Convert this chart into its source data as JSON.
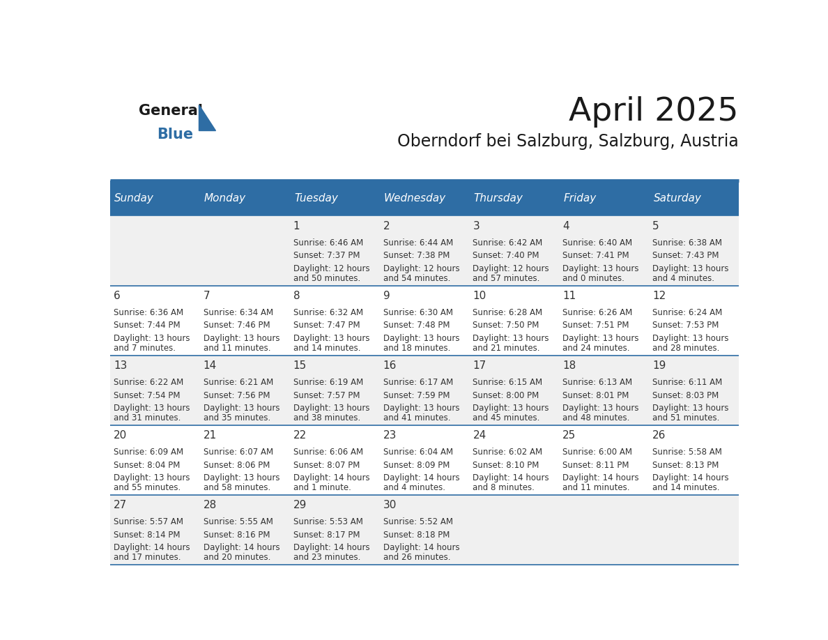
{
  "title": "April 2025",
  "subtitle": "Oberndorf bei Salzburg, Salzburg, Austria",
  "days_of_week": [
    "Sunday",
    "Monday",
    "Tuesday",
    "Wednesday",
    "Thursday",
    "Friday",
    "Saturday"
  ],
  "header_bg": "#2E6DA4",
  "header_text": "#FFFFFF",
  "cell_bg_light": "#F0F0F0",
  "cell_bg_white": "#FFFFFF",
  "cell_text": "#333333",
  "border_color": "#2E6DA4",
  "title_color": "#1a1a1a",
  "subtitle_color": "#1a1a1a",
  "logo_general_color": "#1a1a1a",
  "logo_blue_color": "#2E6DA4",
  "calendar_data": [
    {
      "week": 0,
      "dow": 2,
      "day": 1,
      "sunrise": "6:46 AM",
      "sunset": "7:37 PM",
      "daylight_hours": 12,
      "daylight_minutes": 50
    },
    {
      "week": 0,
      "dow": 3,
      "day": 2,
      "sunrise": "6:44 AM",
      "sunset": "7:38 PM",
      "daylight_hours": 12,
      "daylight_minutes": 54
    },
    {
      "week": 0,
      "dow": 4,
      "day": 3,
      "sunrise": "6:42 AM",
      "sunset": "7:40 PM",
      "daylight_hours": 12,
      "daylight_minutes": 57
    },
    {
      "week": 0,
      "dow": 5,
      "day": 4,
      "sunrise": "6:40 AM",
      "sunset": "7:41 PM",
      "daylight_hours": 13,
      "daylight_minutes": 0
    },
    {
      "week": 0,
      "dow": 6,
      "day": 5,
      "sunrise": "6:38 AM",
      "sunset": "7:43 PM",
      "daylight_hours": 13,
      "daylight_minutes": 4
    },
    {
      "week": 1,
      "dow": 0,
      "day": 6,
      "sunrise": "6:36 AM",
      "sunset": "7:44 PM",
      "daylight_hours": 13,
      "daylight_minutes": 7
    },
    {
      "week": 1,
      "dow": 1,
      "day": 7,
      "sunrise": "6:34 AM",
      "sunset": "7:46 PM",
      "daylight_hours": 13,
      "daylight_minutes": 11
    },
    {
      "week": 1,
      "dow": 2,
      "day": 8,
      "sunrise": "6:32 AM",
      "sunset": "7:47 PM",
      "daylight_hours": 13,
      "daylight_minutes": 14
    },
    {
      "week": 1,
      "dow": 3,
      "day": 9,
      "sunrise": "6:30 AM",
      "sunset": "7:48 PM",
      "daylight_hours": 13,
      "daylight_minutes": 18
    },
    {
      "week": 1,
      "dow": 4,
      "day": 10,
      "sunrise": "6:28 AM",
      "sunset": "7:50 PM",
      "daylight_hours": 13,
      "daylight_minutes": 21
    },
    {
      "week": 1,
      "dow": 5,
      "day": 11,
      "sunrise": "6:26 AM",
      "sunset": "7:51 PM",
      "daylight_hours": 13,
      "daylight_minutes": 24
    },
    {
      "week": 1,
      "dow": 6,
      "day": 12,
      "sunrise": "6:24 AM",
      "sunset": "7:53 PM",
      "daylight_hours": 13,
      "daylight_minutes": 28
    },
    {
      "week": 2,
      "dow": 0,
      "day": 13,
      "sunrise": "6:22 AM",
      "sunset": "7:54 PM",
      "daylight_hours": 13,
      "daylight_minutes": 31
    },
    {
      "week": 2,
      "dow": 1,
      "day": 14,
      "sunrise": "6:21 AM",
      "sunset": "7:56 PM",
      "daylight_hours": 13,
      "daylight_minutes": 35
    },
    {
      "week": 2,
      "dow": 2,
      "day": 15,
      "sunrise": "6:19 AM",
      "sunset": "7:57 PM",
      "daylight_hours": 13,
      "daylight_minutes": 38
    },
    {
      "week": 2,
      "dow": 3,
      "day": 16,
      "sunrise": "6:17 AM",
      "sunset": "7:59 PM",
      "daylight_hours": 13,
      "daylight_minutes": 41
    },
    {
      "week": 2,
      "dow": 4,
      "day": 17,
      "sunrise": "6:15 AM",
      "sunset": "8:00 PM",
      "daylight_hours": 13,
      "daylight_minutes": 45
    },
    {
      "week": 2,
      "dow": 5,
      "day": 18,
      "sunrise": "6:13 AM",
      "sunset": "8:01 PM",
      "daylight_hours": 13,
      "daylight_minutes": 48
    },
    {
      "week": 2,
      "dow": 6,
      "day": 19,
      "sunrise": "6:11 AM",
      "sunset": "8:03 PM",
      "daylight_hours": 13,
      "daylight_minutes": 51
    },
    {
      "week": 3,
      "dow": 0,
      "day": 20,
      "sunrise": "6:09 AM",
      "sunset": "8:04 PM",
      "daylight_hours": 13,
      "daylight_minutes": 55
    },
    {
      "week": 3,
      "dow": 1,
      "day": 21,
      "sunrise": "6:07 AM",
      "sunset": "8:06 PM",
      "daylight_hours": 13,
      "daylight_minutes": 58
    },
    {
      "week": 3,
      "dow": 2,
      "day": 22,
      "sunrise": "6:06 AM",
      "sunset": "8:07 PM",
      "daylight_hours": 14,
      "daylight_minutes": 1
    },
    {
      "week": 3,
      "dow": 3,
      "day": 23,
      "sunrise": "6:04 AM",
      "sunset": "8:09 PM",
      "daylight_hours": 14,
      "daylight_minutes": 4
    },
    {
      "week": 3,
      "dow": 4,
      "day": 24,
      "sunrise": "6:02 AM",
      "sunset": "8:10 PM",
      "daylight_hours": 14,
      "daylight_minutes": 8
    },
    {
      "week": 3,
      "dow": 5,
      "day": 25,
      "sunrise": "6:00 AM",
      "sunset": "8:11 PM",
      "daylight_hours": 14,
      "daylight_minutes": 11
    },
    {
      "week": 3,
      "dow": 6,
      "day": 26,
      "sunrise": "5:58 AM",
      "sunset": "8:13 PM",
      "daylight_hours": 14,
      "daylight_minutes": 14
    },
    {
      "week": 4,
      "dow": 0,
      "day": 27,
      "sunrise": "5:57 AM",
      "sunset": "8:14 PM",
      "daylight_hours": 14,
      "daylight_minutes": 17
    },
    {
      "week": 4,
      "dow": 1,
      "day": 28,
      "sunrise": "5:55 AM",
      "sunset": "8:16 PM",
      "daylight_hours": 14,
      "daylight_minutes": 20
    },
    {
      "week": 4,
      "dow": 2,
      "day": 29,
      "sunrise": "5:53 AM",
      "sunset": "8:17 PM",
      "daylight_hours": 14,
      "daylight_minutes": 23
    },
    {
      "week": 4,
      "dow": 3,
      "day": 30,
      "sunrise": "5:52 AM",
      "sunset": "8:18 PM",
      "daylight_hours": 14,
      "daylight_minutes": 26
    }
  ],
  "num_weeks": 5
}
